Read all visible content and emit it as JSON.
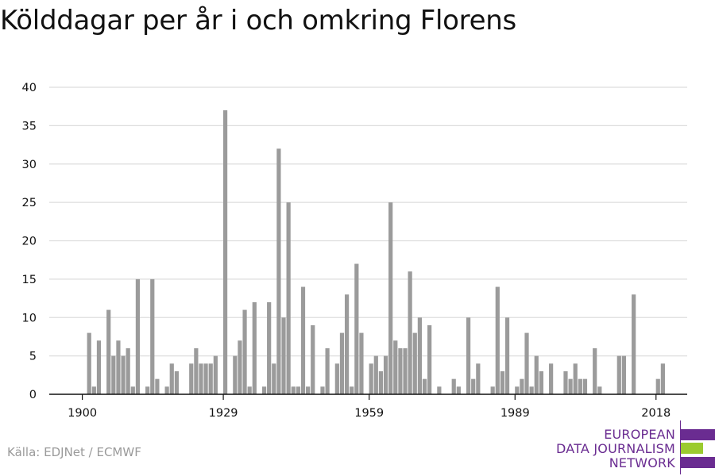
{
  "title": "Kölddagar per år i och omkring Florens",
  "source": "Källa: EDJNet / ECMWF",
  "logo": {
    "lines": [
      "EUROPEAN",
      "DATA JOURNALISM",
      "NETWORK"
    ],
    "colors": {
      "purple": "#6a2c91",
      "green": "#9bcb2f"
    }
  },
  "colors": {
    "bar": "#9b9b9b",
    "grid": "#dddddd",
    "axis": "#111111"
  },
  "chart_data": {
    "type": "bar",
    "title": "Kölddagar per år i och omkring Florens",
    "xlabel": "",
    "ylabel": "",
    "ylim": [
      0,
      40
    ],
    "yticks": [
      0,
      5,
      10,
      15,
      20,
      25,
      30,
      35,
      40
    ],
    "xticks": [
      1900,
      1929,
      1959,
      1989,
      2018
    ],
    "grid": "horizontal",
    "x": [
      1900,
      1901,
      1902,
      1903,
      1904,
      1905,
      1906,
      1907,
      1908,
      1909,
      1910,
      1911,
      1912,
      1913,
      1914,
      1915,
      1916,
      1917,
      1918,
      1919,
      1920,
      1921,
      1922,
      1923,
      1924,
      1925,
      1926,
      1927,
      1928,
      1929,
      1930,
      1931,
      1932,
      1933,
      1934,
      1935,
      1936,
      1937,
      1938,
      1939,
      1940,
      1941,
      1942,
      1943,
      1944,
      1945,
      1946,
      1947,
      1948,
      1949,
      1950,
      1951,
      1952,
      1953,
      1954,
      1955,
      1956,
      1957,
      1958,
      1959,
      1960,
      1961,
      1962,
      1963,
      1964,
      1965,
      1966,
      1967,
      1968,
      1969,
      1970,
      1971,
      1972,
      1973,
      1974,
      1975,
      1976,
      1977,
      1978,
      1979,
      1980,
      1981,
      1982,
      1983,
      1984,
      1985,
      1986,
      1987,
      1988,
      1989,
      1990,
      1991,
      1992,
      1993,
      1994,
      1995,
      1996,
      1997,
      1998,
      1999,
      2000,
      2001,
      2002,
      2003,
      2004,
      2005,
      2006,
      2007,
      2008,
      2009,
      2010,
      2011,
      2012,
      2013,
      2014,
      2015,
      2016,
      2017,
      2018,
      2019,
      2020,
      2021,
      2022
    ],
    "values": [
      0,
      8,
      1,
      7,
      0,
      11,
      5,
      7,
      5,
      6,
      1,
      15,
      0,
      1,
      15,
      2,
      0,
      1,
      4,
      3,
      0,
      0,
      4,
      6,
      4,
      4,
      4,
      5,
      0,
      37,
      0,
      5,
      7,
      11,
      1,
      12,
      0,
      1,
      12,
      4,
      32,
      10,
      25,
      1,
      1,
      14,
      1,
      9,
      0,
      1,
      6,
      0,
      4,
      8,
      13,
      1,
      17,
      8,
      0,
      4,
      5,
      3,
      5,
      25,
      7,
      6,
      6,
      16,
      8,
      10,
      2,
      9,
      0,
      1,
      0,
      0,
      2,
      1,
      0,
      10,
      2,
      4,
      0,
      0,
      1,
      14,
      3,
      10,
      0,
      1,
      2,
      8,
      1,
      5,
      3,
      0,
      4,
      0,
      0,
      3,
      2,
      4,
      2,
      2,
      0,
      6,
      1,
      0,
      0,
      0,
      5,
      5,
      0,
      13,
      0,
      0,
      0,
      0,
      2,
      4,
      0,
      0,
      0
    ]
  }
}
